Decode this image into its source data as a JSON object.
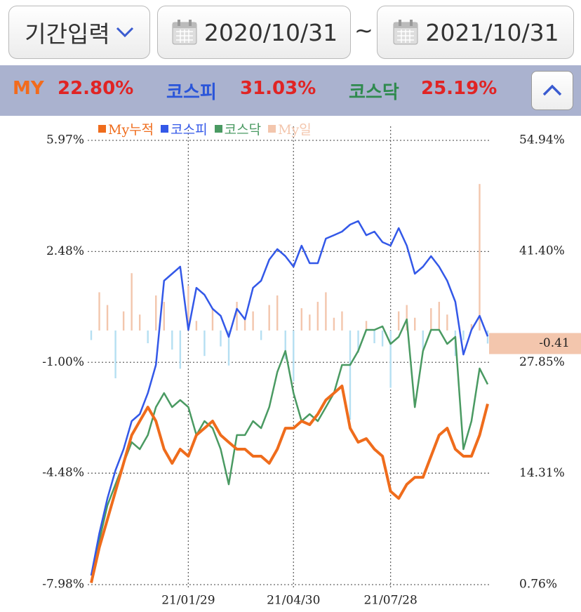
{
  "header": {
    "period_button": "기간입력",
    "start_date": "2020/10/31",
    "separator": "~",
    "end_date": "2021/10/31"
  },
  "summary": [
    {
      "label": "MY",
      "value": "22.80%"
    },
    {
      "label": "코스피",
      "value": "31.03%"
    },
    {
      "label": "코스닥",
      "value": "25.19%"
    }
  ],
  "chart_data": {
    "type": "line",
    "categories": [
      null,
      null,
      null,
      null,
      null,
      null,
      null,
      null,
      null,
      null,
      null,
      null,
      "21/01/29",
      null,
      null,
      null,
      null,
      null,
      null,
      null,
      null,
      null,
      null,
      null,
      null,
      "21/04/30",
      null,
      null,
      null,
      null,
      null,
      null,
      null,
      null,
      null,
      null,
      null,
      "21/07/28",
      null,
      null,
      null,
      null,
      null,
      null,
      null,
      null,
      null,
      null,
      null,
      null
    ],
    "series": [
      {
        "name": "My누적",
        "color": "#ef6c1c",
        "axis": "y2",
        "values": [
          0.97,
          5.29,
          8.72,
          12.14,
          15.56,
          18.99,
          20.7,
          22.41,
          20.7,
          17.28,
          15.56,
          17.28,
          16.42,
          18.99,
          19.84,
          20.7,
          18.99,
          18.13,
          17.28,
          17.28,
          16.42,
          16.42,
          15.56,
          17.28,
          19.84,
          19.84,
          20.7,
          20.27,
          21.56,
          23.27,
          24.12,
          24.98,
          19.84,
          18.13,
          18.56,
          17.28,
          16.42,
          12.14,
          11.28,
          12.99,
          13.85,
          13.85,
          16.42,
          18.99,
          19.84,
          17.28,
          16.42,
          16.42,
          18.99,
          22.8
        ]
      },
      {
        "name": "코스피",
        "color": "#3358e8",
        "axis": "y2",
        "values": [
          1.87,
          7.0,
          11.28,
          14.71,
          17.28,
          20.7,
          21.56,
          24.12,
          27.55,
          37.82,
          38.68,
          39.53,
          31.83,
          36.96,
          36.11,
          34.4,
          33.54,
          30.97,
          34.4,
          33.11,
          36.96,
          37.82,
          40.39,
          41.67,
          40.82,
          39.53,
          42.1,
          39.96,
          39.96,
          42.96,
          43.38,
          43.81,
          44.67,
          45.1,
          43.38,
          43.81,
          42.53,
          42.1,
          44.24,
          42.1,
          38.68,
          39.53,
          40.82,
          39.53,
          37.82,
          35.25,
          28.83,
          31.83,
          33.54,
          31.03
        ]
      },
      {
        "name": "코스닥",
        "color": "#4a9a62",
        "axis": "y2",
        "values": [
          1.87,
          6.15,
          10.43,
          12.99,
          15.56,
          18.13,
          17.28,
          19.0,
          22.41,
          24.12,
          22.41,
          23.27,
          22.41,
          19.0,
          20.7,
          19.84,
          17.28,
          12.99,
          19.0,
          19.0,
          20.7,
          19.84,
          22.41,
          26.69,
          29.26,
          24.12,
          20.7,
          21.56,
          20.7,
          22.41,
          24.12,
          27.55,
          27.55,
          29.26,
          31.83,
          31.83,
          32.26,
          30.12,
          30.97,
          33.11,
          22.41,
          29.26,
          31.83,
          31.83,
          30.12,
          30.97,
          17.28,
          20.7,
          27.12,
          25.19
        ]
      },
      {
        "name": "My일",
        "type": "bar",
        "color": "#f3c6ad",
        "negative_color": "#b5dff2",
        "values": [
          -0.3,
          1.2,
          0.8,
          -1.5,
          0.6,
          1.8,
          0.5,
          -0.4,
          1.1,
          0.9,
          -0.6,
          -1.2,
          1.4,
          0.3,
          -0.8,
          0.7,
          -0.5,
          -1.1,
          0.9,
          0.4,
          0.6,
          -0.3,
          0.8,
          1.1,
          -0.9,
          -1.6,
          0.7,
          0.5,
          0.9,
          1.2,
          0.4,
          0.6,
          -2.8,
          -0.7,
          0.3,
          -0.4,
          -0.5,
          -1.8,
          0.6,
          0.8,
          0.4,
          -0.6,
          0.7,
          0.9,
          0.5,
          -0.8,
          -0.3,
          0.2,
          4.6,
          -0.41
        ]
      }
    ],
    "ylim": [
      -7.98,
      5.97
    ],
    "yticks": [
      {
        "value": 5.97,
        "label": "5.97%"
      },
      {
        "value": 2.48,
        "label": "2.48%"
      },
      {
        "value": -1,
        "label": "-1.00%"
      },
      {
        "value": -4.48,
        "label": "-4.48%"
      },
      {
        "value": -7.98,
        "label": "-7.98%"
      }
    ],
    "y2lim": [
      0.76,
      54.94
    ],
    "y2ticks": [
      {
        "value": 54.94,
        "label": "54.94%"
      },
      {
        "value": 41.4,
        "label": "41.40%"
      },
      {
        "value": 27.85,
        "label": "27.85%"
      },
      {
        "value": 14.31,
        "label": "14.31%"
      },
      {
        "value": 0.76,
        "label": "0.76%"
      }
    ],
    "grid": true
  }
}
